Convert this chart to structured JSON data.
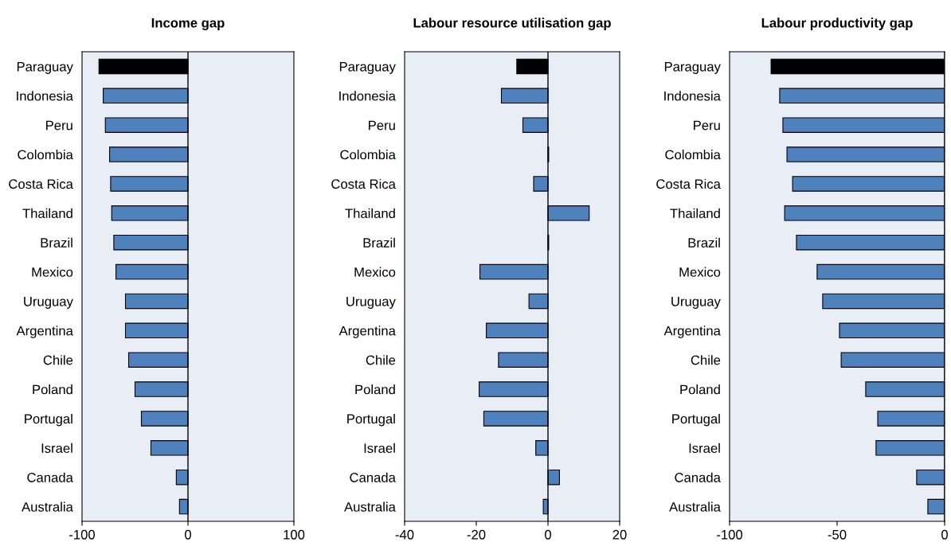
{
  "chart_data": [
    {
      "type": "bar",
      "orientation": "horizontal",
      "title": "Income gap",
      "categories": [
        "Paraguay",
        "Indonesia",
        "Peru",
        "Colombia",
        "Costa Rica",
        "Thailand",
        "Brazil",
        "Mexico",
        "Uruguay",
        "Argentina",
        "Chile",
        "Poland",
        "Portugal",
        "Israel",
        "Canada",
        "Australia"
      ],
      "values": [
        -84,
        -80,
        -78,
        -74,
        -73,
        -72,
        -70,
        -68,
        -59,
        -59,
        -56,
        -50,
        -44,
        -35,
        -11,
        -8
      ],
      "colors": [
        "#000000",
        "#4f81bd",
        "#4f81bd",
        "#4f81bd",
        "#4f81bd",
        "#4f81bd",
        "#4f81bd",
        "#4f81bd",
        "#4f81bd",
        "#4f81bd",
        "#4f81bd",
        "#4f81bd",
        "#4f81bd",
        "#4f81bd",
        "#4f81bd",
        "#4f81bd"
      ],
      "xlim": [
        -100,
        100
      ],
      "xticks": [
        -100,
        0,
        100
      ],
      "ref_lines": [
        {
          "axis": "x",
          "value": 0,
          "color": "#000000"
        }
      ],
      "grid": false,
      "legend": false
    },
    {
      "type": "bar",
      "orientation": "horizontal",
      "title": "Labour resource utilisation gap",
      "categories": [
        "Paraguay",
        "Indonesia",
        "Peru",
        "Colombia",
        "Costa Rica",
        "Thailand",
        "Brazil",
        "Mexico",
        "Uruguay",
        "Argentina",
        "Chile",
        "Poland",
        "Portugal",
        "Israel",
        "Canada",
        "Australia"
      ],
      "values": [
        -8.7,
        -13,
        -7,
        0.2,
        -4,
        11.5,
        0.2,
        -19,
        -5.3,
        -17.2,
        -13.8,
        -19.2,
        -17.9,
        -3.4,
        3.2,
        -1.3
      ],
      "colors": [
        "#000000",
        "#4f81bd",
        "#4f81bd",
        "#4f81bd",
        "#4f81bd",
        "#4f81bd",
        "#4f81bd",
        "#4f81bd",
        "#4f81bd",
        "#4f81bd",
        "#4f81bd",
        "#4f81bd",
        "#4f81bd",
        "#4f81bd",
        "#4f81bd",
        "#4f81bd"
      ],
      "xlim": [
        -40,
        20
      ],
      "xticks": [
        -40,
        -20,
        0,
        20
      ],
      "ref_lines": [
        {
          "axis": "x",
          "value": 0,
          "color": "#000000"
        }
      ],
      "grid": false,
      "legend": false
    },
    {
      "type": "bar",
      "orientation": "horizontal",
      "title": "Labour productivity gap",
      "categories": [
        "Paraguay",
        "Indonesia",
        "Peru",
        "Colombia",
        "Costa Rica",
        "Thailand",
        "Brazil",
        "Mexico",
        "Uruguay",
        "Argentina",
        "Chile",
        "Poland",
        "Portugal",
        "Israel",
        "Canada",
        "Australia"
      ],
      "values": [
        -80.7,
        -76.7,
        -75.2,
        -73.3,
        -70.7,
        -74.4,
        -68.9,
        -59.3,
        -56.7,
        -48.9,
        -48.1,
        -36.7,
        -31.1,
        -31.9,
        -13,
        -7.8
      ],
      "colors": [
        "#000000",
        "#4f81bd",
        "#4f81bd",
        "#4f81bd",
        "#4f81bd",
        "#4f81bd",
        "#4f81bd",
        "#4f81bd",
        "#4f81bd",
        "#4f81bd",
        "#4f81bd",
        "#4f81bd",
        "#4f81bd",
        "#4f81bd",
        "#4f81bd",
        "#4f81bd"
      ],
      "xlim": [
        -100,
        0
      ],
      "xticks": [
        -100,
        -50,
        0
      ],
      "ref_lines": [
        {
          "axis": "x",
          "value": 0,
          "color": "#000000"
        }
      ],
      "grid": false,
      "legend": false
    }
  ]
}
